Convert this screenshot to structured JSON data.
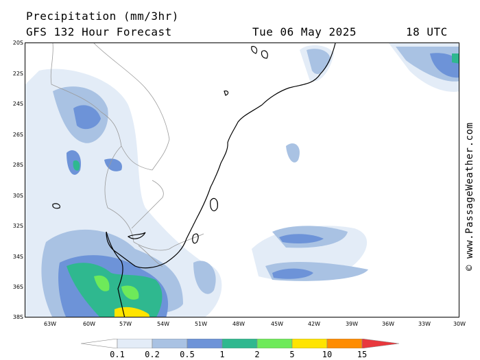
{
  "header": {
    "title": "Precipitation (mm/3hr)",
    "model": "GFS 132 Hour Forecast",
    "date": "Tue 06 May 2025",
    "time": "18 UTC"
  },
  "credit": "© www.PassageWeather.com",
  "lat_labels": [
    "20S",
    "22S",
    "24S",
    "26S",
    "28S",
    "30S",
    "32S",
    "34S",
    "36S",
    "38S"
  ],
  "lon_labels": [
    "63W",
    "60W",
    "57W",
    "54W",
    "51W",
    "48W",
    "45W",
    "42W",
    "39W",
    "36W",
    "33W",
    "30W"
  ],
  "legend": {
    "labels": [
      "0.1",
      "0.2",
      "0.5",
      "1",
      "2",
      "5",
      "10",
      "15"
    ],
    "colors": [
      "#ffffff",
      "#e3ecf7",
      "#a9c2e3",
      "#6d93d8",
      "#2fb88f",
      "#6eea5a",
      "#ffe400",
      "#ff8c00",
      "#e8383d"
    ]
  },
  "colors": {
    "coast": "#000000",
    "border": "#9a9a9a",
    "precip_light": "#e3ecf7",
    "precip_low": "#a9c2e3",
    "precip_mid": "#6d93d8",
    "precip_high": "#2fb88f",
    "precip_higher": "#6eea5a",
    "precip_peak": "#ffe400"
  }
}
